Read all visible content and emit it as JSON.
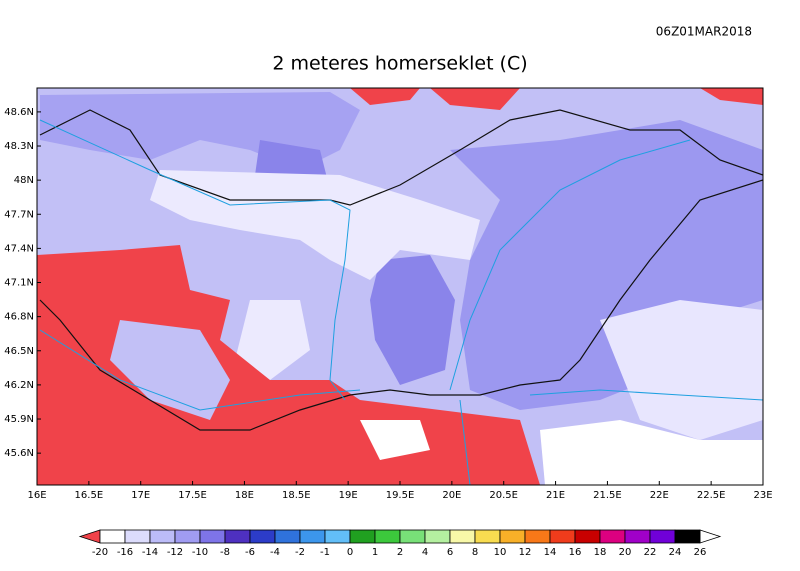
{
  "header": {
    "timestamp": "06Z01MAR2018",
    "title": "2 meteres homerseklet (C)"
  },
  "map": {
    "xlim": [
      16,
      23
    ],
    "ylim": [
      45.32,
      48.81
    ],
    "xticks": [
      {
        "value": 16,
        "label": "16E"
      },
      {
        "value": 16.5,
        "label": "16.5E"
      },
      {
        "value": 17,
        "label": "17E"
      },
      {
        "value": 17.5,
        "label": "17.5E"
      },
      {
        "value": 18,
        "label": "18E"
      },
      {
        "value": 18.5,
        "label": "18.5E"
      },
      {
        "value": 19,
        "label": "19E"
      },
      {
        "value": 19.5,
        "label": "19.5E"
      },
      {
        "value": 20,
        "label": "20E"
      },
      {
        "value": 20.5,
        "label": "20.5E"
      },
      {
        "value": 21,
        "label": "21E"
      },
      {
        "value": 21.5,
        "label": "21.5E"
      },
      {
        "value": 22,
        "label": "22E"
      },
      {
        "value": 22.5,
        "label": "22.5E"
      },
      {
        "value": 23,
        "label": "23E"
      }
    ],
    "yticks": [
      {
        "value": 45.6,
        "label": "45.6N"
      },
      {
        "value": 45.9,
        "label": "45.9N"
      },
      {
        "value": 46.2,
        "label": "46.2N"
      },
      {
        "value": 46.5,
        "label": "46.5N"
      },
      {
        "value": 46.8,
        "label": "46.8N"
      },
      {
        "value": 47.1,
        "label": "47.1N"
      },
      {
        "value": 47.4,
        "label": "47.4N"
      },
      {
        "value": 47.7,
        "label": "47.7N"
      },
      {
        "value": 48,
        "label": "48N"
      },
      {
        "value": 48.3,
        "label": "48.3N"
      },
      {
        "value": 48.6,
        "label": "48.6N"
      }
    ]
  },
  "colorbar": {
    "levels": [
      -20,
      -16,
      -14,
      -12,
      -10,
      -8,
      -6,
      -4,
      -2,
      -1,
      0,
      1,
      2,
      4,
      6,
      8,
      10,
      12,
      14,
      16,
      18,
      20,
      22,
      24,
      26
    ],
    "below_color": "#f0434a",
    "colors": [
      "#ffffff",
      "#dcdcfc",
      "#bcbcf8",
      "#a09cf2",
      "#7e74e8",
      "#4e30c0",
      "#2c3cc8",
      "#2f72dc",
      "#3c96ec",
      "#62bef8",
      "#20a020",
      "#3cc83c",
      "#78e078",
      "#b4f0a0",
      "#f8f8a8",
      "#f8dc50",
      "#f8b028",
      "#f87818",
      "#f03c1c",
      "#c80000",
      "#dc0080",
      "#a000c8",
      "#7000d8",
      "#000000"
    ],
    "above_color": "#ffffff"
  }
}
